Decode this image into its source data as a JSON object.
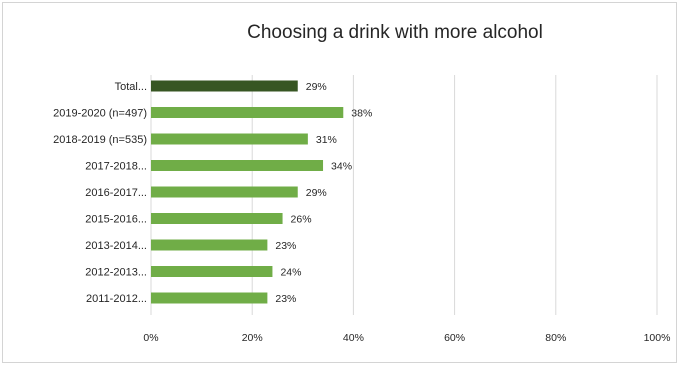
{
  "chart_data": {
    "type": "bar",
    "orientation": "horizontal",
    "title": "Choosing a drink with more alcohol",
    "xlabel": "",
    "ylabel": "",
    "categories": [
      "Total...",
      "2019-2020 (n=497)",
      "2018-2019 (n=535)",
      "2017-2018...",
      "2016-2017...",
      "2015-2016...",
      "2013-2014...",
      "2012-2013...",
      "2011-2012..."
    ],
    "values": [
      29,
      38,
      31,
      34,
      29,
      26,
      23,
      24,
      23
    ],
    "value_labels": [
      "29%",
      "38%",
      "31%",
      "34%",
      "29%",
      "26%",
      "23%",
      "24%",
      "23%"
    ],
    "xlim": [
      0,
      100
    ],
    "x_ticks": [
      0,
      20,
      40,
      60,
      80,
      100
    ],
    "x_tick_labels": [
      "0%",
      "20%",
      "40%",
      "60%",
      "80%",
      "100%"
    ],
    "grid": "vertical",
    "legend": "none",
    "colors": {
      "highlight_bar": "#375623",
      "bar": "#70ad47",
      "gridline": "#d9d9d9"
    }
  }
}
